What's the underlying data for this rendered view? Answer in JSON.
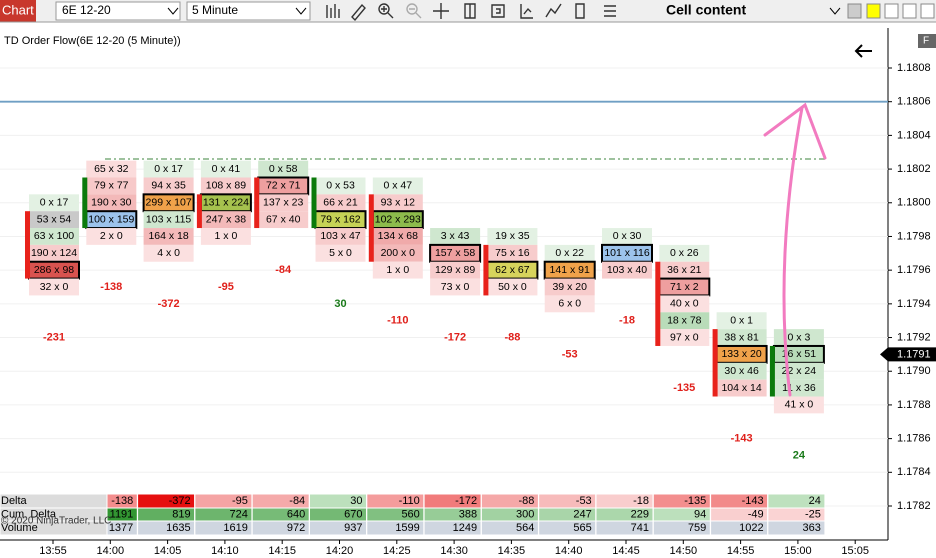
{
  "toolbar": {
    "tab": "Chart",
    "instrument": "6E 12-20",
    "interval": "5 Minute",
    "mode": "Cell content"
  },
  "chart": {
    "title": "TD Order Flow(6E 12-20 (5 Minute))",
    "price_ticks": [
      1.1808,
      1.1806,
      1.1804,
      1.1802,
      {
        "value": 1.18,
        "label": "1.1800"
      },
      1.1798,
      1.1796,
      1.1794,
      1.1792,
      {
        "value": 1.179,
        "label": "1.1790"
      },
      1.1788,
      1.1786,
      1.1784,
      1.1782
    ],
    "current_price": 1.1791,
    "levels": [
      {
        "price": 1.1806,
        "color": "#6f9fc4"
      },
      {
        "price": 1.18026,
        "color": "#7fae7f",
        "dash": true
      }
    ],
    "times": [
      "13:55",
      "14:00",
      "14:05",
      "14:10",
      "14:15",
      "14:20",
      "14:25",
      "14:30",
      "14:35",
      "14:40",
      "14:45",
      "14:50",
      "14:55",
      "15:00",
      "15:05"
    ],
    "bars": [
      {
        "high": 1.18,
        "open": 1.1799,
        "close": 1.1796,
        "delta": -231,
        "cells": [
          {
            "text": "0 x 17",
            "bg": "#e3f1e3"
          },
          {
            "text": "53 x 54",
            "bg": "#c9c9c9"
          },
          {
            "text": "63 x 100",
            "bg": "#cfe7cf"
          },
          {
            "text": "190 x 124",
            "bg": "#f7cccc"
          },
          {
            "text": "286 x 98",
            "bg": "#d9534f",
            "box": true
          },
          {
            "text": "32 x 0",
            "bg": "#fbe0e0"
          }
        ]
      },
      {
        "high": 1.1802,
        "open": 1.1799,
        "close": 1.1801,
        "delta": -138,
        "cells": [
          {
            "text": "65 x 32",
            "bg": "#fbdcdc"
          },
          {
            "text": "79 x 77",
            "bg": "#f7c9c9"
          },
          {
            "text": "190 x 30",
            "bg": "#f3b9b9"
          },
          {
            "text": "100 x 159",
            "bg": "#9cc3ec",
            "box": true
          },
          {
            "text": "2 x 0",
            "bg": "#fbe0e0"
          }
        ]
      },
      {
        "high": 1.1802,
        "delta": -372,
        "cells": [
          {
            "text": "0 x 17",
            "bg": "#e3f1e3"
          },
          {
            "text": "94 x 35",
            "bg": "#f7cccc"
          },
          {
            "text": "299 x 107",
            "bg": "#f0a24a",
            "box": true
          },
          {
            "text": "103 x 115",
            "bg": "#cfe7cf"
          },
          {
            "text": "164 x 18",
            "bg": "#f3b9b9"
          },
          {
            "text": "4 x 0",
            "bg": "#fbe0e0"
          }
        ]
      },
      {
        "high": 1.1802,
        "open": 1.18,
        "close": 1.1799,
        "delta": -95,
        "cells": [
          {
            "text": "0 x 41",
            "bg": "#e3f1e3"
          },
          {
            "text": "108 x 89",
            "bg": "#f7cccc"
          },
          {
            "text": "131 x 224",
            "bg": "#a6c24e",
            "box": true
          },
          {
            "text": "247 x 38",
            "bg": "#f3b9b9"
          },
          {
            "text": "1 x 0",
            "bg": "#fbe0e0"
          }
        ]
      },
      {
        "high": 1.1802,
        "open": 1.1801,
        "close": 1.1799,
        "delta": -84,
        "cells": [
          {
            "text": "0 x 58",
            "bg": "#cfe7cf"
          },
          {
            "text": "72 x 71",
            "bg": "#ee9f9f",
            "box": true
          },
          {
            "text": "137 x 23",
            "bg": "#f7cccc"
          },
          {
            "text": "67 x 40",
            "bg": "#f7cccc"
          }
        ]
      },
      {
        "high": 1.1801,
        "open": 1.1799,
        "close": 1.1801,
        "delta": 30,
        "cells": [
          {
            "text": "0 x 53",
            "bg": "#e3f1e3"
          },
          {
            "text": "66 x 21",
            "bg": "#f7cccc"
          },
          {
            "text": "79 x 162",
            "bg": "#c6d256",
            "box": true
          },
          {
            "text": "103 x 47",
            "bg": "#f7cccc"
          },
          {
            "text": "5 x 0",
            "bg": "#fbe0e0"
          }
        ]
      },
      {
        "high": 1.1801,
        "open": 1.18,
        "close": 1.1797,
        "delta": -110,
        "cells": [
          {
            "text": "0 x 47",
            "bg": "#e3f1e3"
          },
          {
            "text": "93 x 12",
            "bg": "#f7cccc"
          },
          {
            "text": "102 x 293",
            "bg": "#8dbb4c",
            "box": true
          },
          {
            "text": "134 x 68",
            "bg": "#f0aaaa"
          },
          {
            "text": "200 x 0",
            "bg": "#f3b9b9"
          },
          {
            "text": "1 x 0",
            "bg": "#fbe0e0"
          }
        ]
      },
      {
        "high": 1.1798,
        "delta": -172,
        "cells": [
          {
            "text": "3 x 43",
            "bg": "#cfe7cf"
          },
          {
            "text": "157 x 58",
            "bg": "#ee9f9f",
            "box": true
          },
          {
            "text": "129 x 89",
            "bg": "#f7cccc"
          },
          {
            "text": "73 x 0",
            "bg": "#fbe0e0"
          }
        ]
      },
      {
        "high": 1.1798,
        "open": 1.1797,
        "close": 1.1795,
        "delta": -88,
        "cells": [
          {
            "text": "19 x 35",
            "bg": "#e3f1e3"
          },
          {
            "text": "75 x 16",
            "bg": "#f7cccc"
          },
          {
            "text": "62 x 67",
            "bg": "#d6d35c",
            "box": true
          },
          {
            "text": "50 x 0",
            "bg": "#fbe0e0"
          }
        ]
      },
      {
        "high": 1.1797,
        "delta": -53,
        "cells": [
          {
            "text": "0 x 22",
            "bg": "#e3f1e3"
          },
          {
            "text": "141 x 91",
            "bg": "#f0a24a",
            "box": true
          },
          {
            "text": "39 x 20",
            "bg": "#f7cccc"
          },
          {
            "text": "6 x 0",
            "bg": "#fbe0e0"
          }
        ]
      },
      {
        "high": 1.1798,
        "delta": -18,
        "cells": [
          {
            "text": "0 x 30",
            "bg": "#e3f1e3"
          },
          {
            "text": "101 x 116",
            "bg": "#9cc3ec",
            "box": true
          },
          {
            "text": "103 x 40",
            "bg": "#f7cccc"
          }
        ]
      },
      {
        "high": 1.1797,
        "open": 1.1796,
        "close": 1.1792,
        "delta": -135,
        "cells": [
          {
            "text": "0 x 26",
            "bg": "#e3f1e3"
          },
          {
            "text": "36 x 21",
            "bg": "#f7cccc"
          },
          {
            "text": "71 x 2",
            "bg": "#ee9f9f",
            "box": true
          },
          {
            "text": "40 x 0",
            "bg": "#fbe0e0"
          },
          {
            "text": "18 x 78",
            "bg": "#b9dcb9"
          },
          {
            "text": "97 x 0",
            "bg": "#fbe0e0"
          }
        ]
      },
      {
        "high": 1.1793,
        "open": 1.1792,
        "close": 1.1789,
        "delta": -143,
        "cells": [
          {
            "text": "0 x 1",
            "bg": "#e3f1e3"
          },
          {
            "text": "38 x 81",
            "bg": "#cfe7cf"
          },
          {
            "text": "133 x 20",
            "bg": "#f0a24a",
            "box": true
          },
          {
            "text": "30 x 46",
            "bg": "#cfe7cf"
          },
          {
            "text": "104 x 14",
            "bg": "#f7cccc"
          }
        ]
      },
      {
        "high": 1.1792,
        "open": 1.1789,
        "close": 1.1791,
        "delta": 24,
        "cells": [
          {
            "text": "0 x 3",
            "bg": "#cfe7cf"
          },
          {
            "text": "16 x 51",
            "bg": "#b9dcb9",
            "box": true
          },
          {
            "text": "22 x 24",
            "bg": "#cfe7cf"
          },
          {
            "text": "11 x 36",
            "bg": "#cfe7cf"
          },
          {
            "text": "41 x 0",
            "bg": "#fbe0e0"
          }
        ]
      }
    ],
    "rows": [
      {
        "label": "Delta",
        "values": [
          -138,
          -372,
          -95,
          -84,
          30,
          -110,
          -172,
          -88,
          -53,
          -18,
          -135,
          -143,
          24
        ]
      },
      {
        "label": "Cum. Delta",
        "values": [
          1191,
          819,
          724,
          640,
          670,
          560,
          388,
          300,
          247,
          229,
          94,
          -49,
          -25
        ]
      },
      {
        "label": "Volume",
        "values": [
          1377,
          1635,
          1619,
          972,
          937,
          1599,
          1249,
          564,
          565,
          741,
          759,
          1022,
          363
        ]
      }
    ],
    "copyright": "© 2020 NinjaTrader, LLC"
  }
}
